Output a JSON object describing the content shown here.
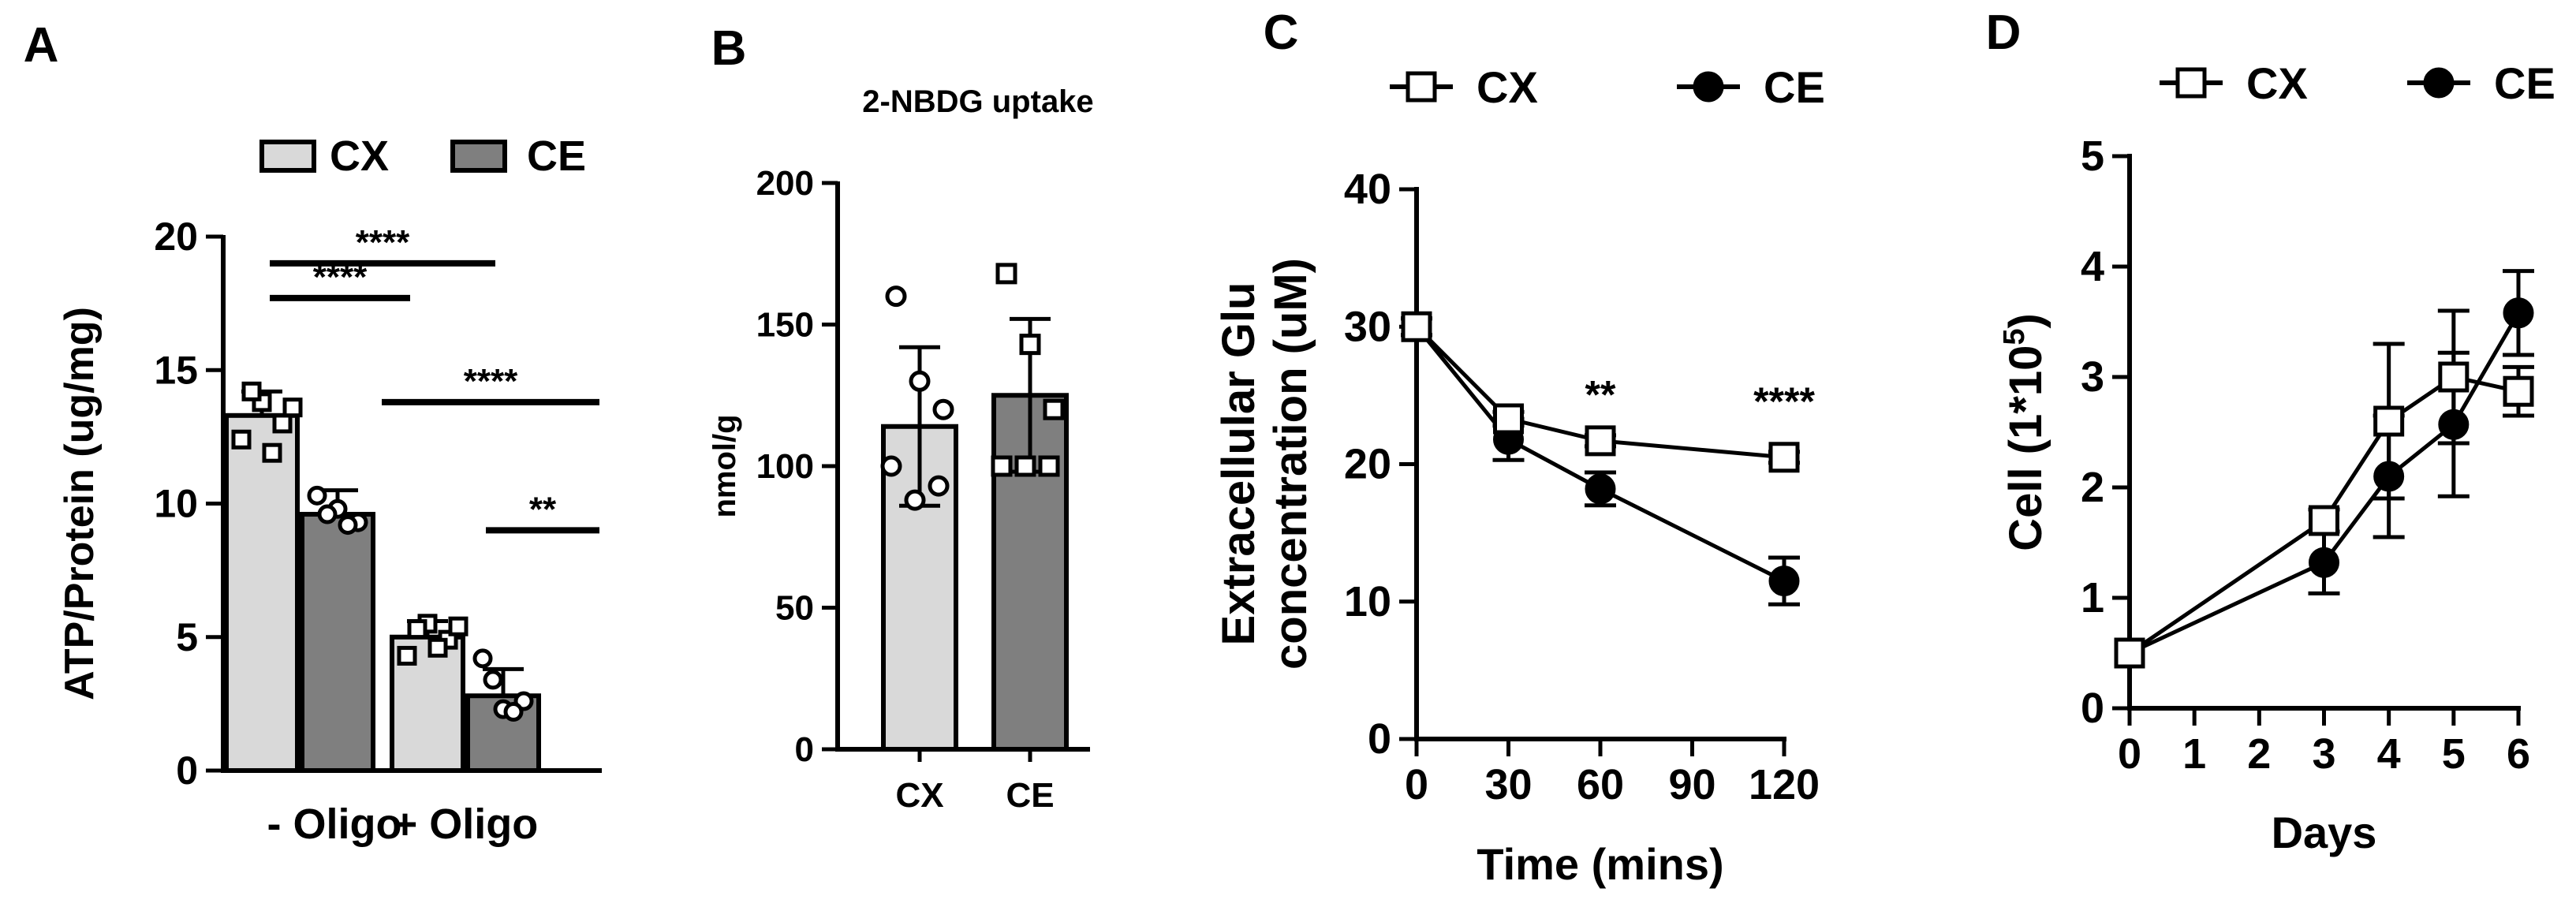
{
  "chart_data": [
    {
      "panel": "A",
      "type": "bar",
      "ylabel": "ATP/Protein (ug/mg)",
      "ylim": [
        0,
        20
      ],
      "yticks": [
        0,
        5,
        10,
        15,
        20
      ],
      "categories": [
        "- Oligo",
        "+ Oligo"
      ],
      "legend": [
        "CX",
        "CE"
      ],
      "series": [
        {
          "name": "CX",
          "color": "#d9d9d9",
          "marker": "square",
          "values": [
            13.3,
            5.0
          ],
          "errors": [
            0.9,
            0.6
          ],
          "points": [
            [
              12.4,
              13.8,
              13.0,
              14.2,
              11.9,
              13.6
            ],
            [
              4.3,
              5.5,
              4.9,
              5.3,
              4.6,
              5.4
            ]
          ]
        },
        {
          "name": "CE",
          "color": "#7f7f7f",
          "marker": "circle",
          "values": [
            9.6,
            2.8
          ],
          "errors": [
            0.9,
            1.0
          ],
          "points": [
            [
              10.3,
              9.8,
              9.3,
              9.6,
              9.2
            ],
            [
              4.2,
              2.3,
              2.6,
              3.4,
              2.2
            ]
          ]
        }
      ],
      "significance": [
        {
          "label": "****",
          "y": 19.0
        },
        {
          "label": "****",
          "y": 17.7
        },
        {
          "label": "****",
          "y": 13.8
        },
        {
          "label": "**",
          "y": 9.0
        }
      ]
    },
    {
      "panel": "B",
      "type": "bar",
      "title": "2-NBDG uptake",
      "ylabel": "nmol/g",
      "ylim": [
        0,
        200
      ],
      "yticks": [
        0,
        50,
        100,
        150,
        200
      ],
      "categories": [
        "CX",
        "CE"
      ],
      "values": [
        114,
        125
      ],
      "errors": [
        28,
        27
      ],
      "colors": [
        "#d9d9d9",
        "#7f7f7f"
      ],
      "points": [
        [
          160,
          130,
          120,
          100,
          88,
          93
        ],
        [
          168,
          143,
          120,
          100,
          100,
          100
        ]
      ],
      "markers": [
        "circle",
        "square"
      ]
    },
    {
      "panel": "C",
      "type": "line",
      "xlabel": "Time (mins)",
      "ylabel_line1": "Extracellular Glu",
      "ylabel_line2": "concentration (uM)",
      "xlim": [
        0,
        120
      ],
      "ylim": [
        0,
        40
      ],
      "xticks": [
        0,
        30,
        60,
        90,
        120
      ],
      "yticks": [
        0,
        10,
        20,
        30,
        40
      ],
      "legend": [
        "CX",
        "CE"
      ],
      "series": [
        {
          "name": "CX",
          "marker": "open-square",
          "x": [
            0,
            30,
            60,
            120
          ],
          "y": [
            30,
            23.3,
            21.7,
            20.5
          ],
          "err": [
            0.6,
            0.5,
            0.4,
            0.4
          ]
        },
        {
          "name": "CE",
          "marker": "filled-circle",
          "x": [
            0,
            30,
            60,
            120
          ],
          "y": [
            30,
            21.8,
            18.2,
            11.5
          ],
          "err": [
            0.6,
            1.5,
            1.2,
            1.7
          ]
        }
      ],
      "annotations": [
        {
          "label": "**",
          "x": 60,
          "y": 25
        },
        {
          "label": "****",
          "x": 120,
          "y": 24.5
        }
      ]
    },
    {
      "panel": "D",
      "type": "line",
      "xlabel": "Days",
      "ylabel_main": "Cell (1*10",
      "ylabel_exp": "5",
      "ylabel_end": ")",
      "xlim": [
        0,
        6
      ],
      "ylim": [
        0,
        5
      ],
      "xticks": [
        0,
        1,
        2,
        3,
        4,
        5,
        6
      ],
      "yticks": [
        0,
        1,
        2,
        3,
        4,
        5
      ],
      "legend": [
        "CX",
        "CE"
      ],
      "series": [
        {
          "name": "CX",
          "marker": "open-square",
          "x": [
            0,
            3,
            4,
            5,
            6
          ],
          "y": [
            0.5,
            1.7,
            2.6,
            3.0,
            2.87
          ],
          "err": [
            0.05,
            0.1,
            0.7,
            0.6,
            0.22
          ]
        },
        {
          "name": "CE",
          "marker": "filled-circle",
          "x": [
            0,
            3,
            4,
            5,
            6
          ],
          "y": [
            0.5,
            1.32,
            2.1,
            2.57,
            3.58
          ],
          "err": [
            0.05,
            0.28,
            0.55,
            0.65,
            0.38
          ]
        }
      ]
    }
  ]
}
